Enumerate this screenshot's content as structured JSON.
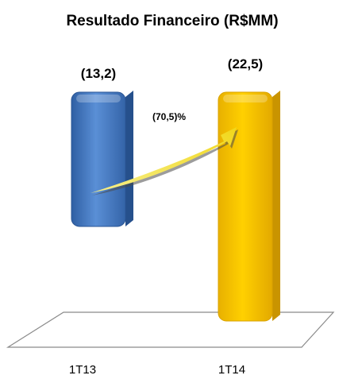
{
  "chart_data": {
    "type": "bar",
    "title": "Resultado Financeiro (R$MM)",
    "categories": [
      "1T13",
      "1T14"
    ],
    "values": [
      -13.2,
      -22.5
    ],
    "data_labels": [
      "(13,2)",
      "(22,5)"
    ],
    "change_annotation": "(70,5)%",
    "xlabel": "",
    "ylabel": "",
    "ylim": [
      -25,
      0
    ],
    "grid": false,
    "legend": "none",
    "bar_colors": [
      "#4a7ec6",
      "#ffc800"
    ],
    "arrow_color": "#f2e32a"
  }
}
